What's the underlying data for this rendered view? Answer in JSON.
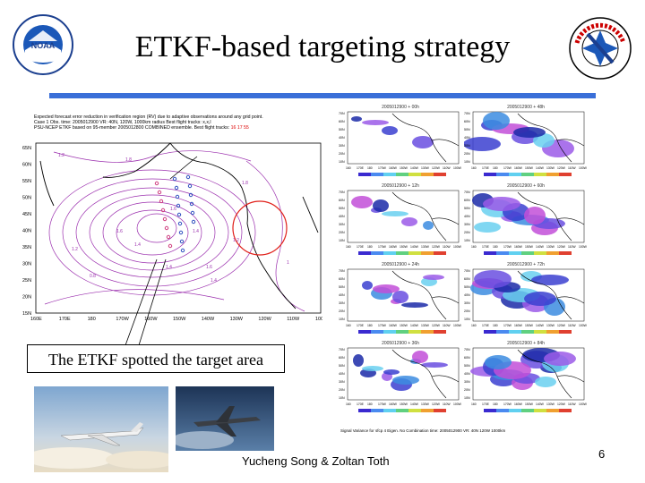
{
  "slide": {
    "title": "ETKF-based targeting strategy",
    "callout": "The ETKF spotted the target area",
    "authors": "Yucheng Song & Zoltan Toth",
    "page_number": "6"
  },
  "main_figure": {
    "caption_line1": "Expected forecast error reduction in verification region (RV) due to adaptive observations around any grid point.",
    "caption_line2": "Case 1   Obs. time: 2005012900   VR: 40N, 120W, 1000km radius   Best flight tracks: x,x,l",
    "caption_line3_prefix": "PSU-NCEP ETKF based on 95-member 2005012800 COMBINED ensemble.  Best flight tracks:",
    "caption_line3_tracks": "16 17 55",
    "lat_labels": [
      "65N",
      "60N",
      "55N",
      "50N",
      "45N",
      "40N",
      "35N",
      "30N",
      "25N",
      "20N",
      "15N"
    ],
    "lon_labels": [
      "160E",
      "170E",
      "180",
      "170W",
      "160W",
      "150W",
      "140W",
      "130W",
      "120W",
      "110W",
      "100W"
    ],
    "contour_labels": [
      "1.2",
      "1.8",
      "1.8",
      "1.6",
      "1.4",
      "1.2",
      "1.4",
      "1.6",
      "1.6",
      "1.4",
      "0.8",
      "1.4",
      "1.2",
      "1"
    ]
  },
  "panels": [
    {
      "title": "2005012900 + 00h"
    },
    {
      "title": "2005012900 + 48h"
    },
    {
      "title": "2005012900 + 12h"
    },
    {
      "title": "2005012900 + 60h"
    },
    {
      "title": "2005012900 + 24h"
    },
    {
      "title": "2005012900 + 72h"
    },
    {
      "title": "2005012900 + 36h"
    },
    {
      "title": "2005012900 + 84h"
    }
  ],
  "panel_lat_labels": [
    "70N",
    "60N",
    "50N",
    "40N",
    "30N",
    "20N",
    "10N"
  ],
  "panel_lon_labels": [
    "160",
    "170E",
    "180",
    "170W",
    "160W",
    "150W",
    "140W",
    "130W",
    "120W",
    "110W",
    "100W"
  ],
  "bottom_caption": "Signal Variance for sfcp 4 Eigen. No Combination time: 2005012900  VR: 40N 120W 1000km",
  "colors": {
    "title_rule": "#3a6fd8",
    "contour": "#9b2fae",
    "target_circle": "#e0201a",
    "coast": "#000000"
  }
}
